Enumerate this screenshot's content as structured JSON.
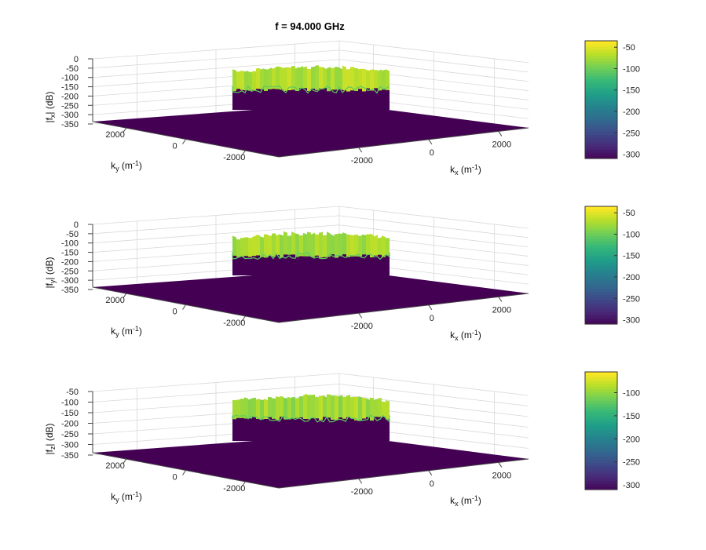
{
  "figure_title": "f = 94.000 GHz",
  "colors": {
    "floor": "#440154",
    "viridis": [
      "#440154",
      "#482878",
      "#3e4989",
      "#31688e",
      "#26828e",
      "#1f9e89",
      "#35b779",
      "#6ece58",
      "#b5de2b",
      "#fde725"
    ],
    "grid": "#d9d9d9",
    "box": "#bdbdbd"
  },
  "chart_data": [
    {
      "type": "surface",
      "title": "f = 94.000 GHz",
      "xlabel": "k_x (m^-1)",
      "ylabel": "k_y (m^-1)",
      "zlabel": "|f_x| (dB)",
      "x_ticks": [
        -2000,
        0,
        2000
      ],
      "y_ticks": [
        2000,
        0,
        -2000
      ],
      "z_ticks": [
        0,
        -50,
        -100,
        -150,
        -200,
        -250,
        -300,
        -350
      ],
      "zlim": [
        -350,
        0
      ],
      "floor_level": -320,
      "plateau_level": -70,
      "colorbar": {
        "ticks": [
          -50,
          -100,
          -150,
          -200,
          -250,
          -300
        ],
        "range": [
          -310,
          -35
        ]
      },
      "labels": {
        "zlabel_main": "|f",
        "zlabel_sub": "x",
        "zlabel_tail": "| (dB)"
      }
    },
    {
      "type": "surface",
      "xlabel": "k_x (m^-1)",
      "ylabel": "k_y (m^-1)",
      "zlabel": "|f_y| (dB)",
      "x_ticks": [
        -2000,
        0,
        2000
      ],
      "y_ticks": [
        2000,
        0,
        -2000
      ],
      "z_ticks": [
        0,
        -50,
        -100,
        -150,
        -200,
        -250,
        -300,
        -350
      ],
      "zlim": [
        -350,
        0
      ],
      "floor_level": -320,
      "plateau_level": -75,
      "colorbar": {
        "ticks": [
          -50,
          -100,
          -150,
          -200,
          -250,
          -300
        ],
        "range": [
          -310,
          -35
        ]
      },
      "labels": {
        "zlabel_main": "|f",
        "zlabel_sub": "y",
        "zlabel_tail": "| (dB)"
      }
    },
    {
      "type": "surface",
      "xlabel": "k_x (m^-1)",
      "ylabel": "k_y (m^-1)",
      "zlabel": "|f_z| (dB)",
      "x_ticks": [
        -2000,
        0,
        2000
      ],
      "y_ticks": [
        2000,
        0,
        -2000
      ],
      "z_ticks": [
        -50,
        -100,
        -150,
        -200,
        -250,
        -300,
        -350
      ],
      "zlim": [
        -350,
        -50
      ],
      "floor_level": -320,
      "plateau_level": -95,
      "colorbar": {
        "ticks": [
          -100,
          -150,
          -200,
          -250,
          -300
        ],
        "range": [
          -310,
          -55
        ]
      },
      "labels": {
        "zlabel_main": "|f",
        "zlabel_sub": "z",
        "zlabel_tail": "| (dB)"
      }
    }
  ],
  "axis_text": {
    "kx_main": "k",
    "kx_sub": "x",
    "kx_tail": " (m",
    "kx_sup": "-1",
    "kx_close": ")",
    "ky_main": "k",
    "ky_sub": "y",
    "ky_tail": " (m",
    "ky_sup": "-1",
    "ky_close": ")"
  }
}
